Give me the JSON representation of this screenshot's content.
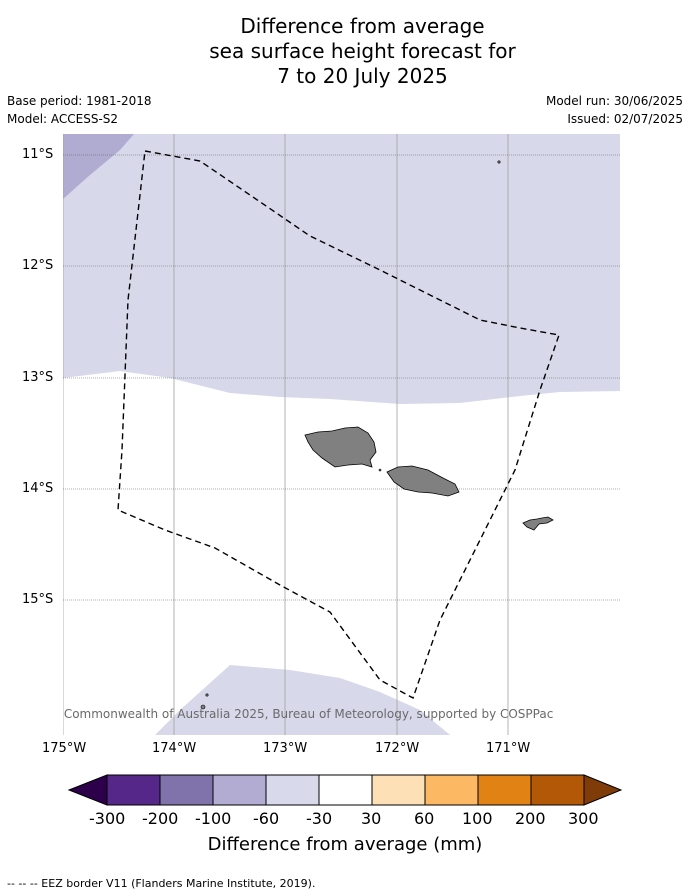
{
  "title": {
    "line1": "Difference from average",
    "line2": "sea surface height forecast for",
    "line3": "7 to 20 July 2025"
  },
  "meta": {
    "base_period": "Base period: 1981-2018",
    "model": "Model: ACCESS-S2",
    "model_run": "Model run: 30/06/2025",
    "issued": "Issued: 02/07/2025"
  },
  "map": {
    "latitude_labels": [
      "11°S",
      "12°S",
      "13°S",
      "14°S",
      "15°S"
    ],
    "longitude_labels": [
      "175°W",
      "174°W",
      "173°W",
      "172°W",
      "171°W"
    ],
    "copyright": "© Commonwealth of Australia 2025, Bureau of Meteorology, supported by COSPPac",
    "colors": {
      "anomaly_minus30_to_minus60": "#d7d8ea",
      "anomaly_minus60_to_minus100": "#b0abd1",
      "land": "#808080",
      "neutral": "#ffffff"
    }
  },
  "colorbar": {
    "title": "Difference from average (mm)",
    "labels": [
      "-300",
      "-200",
      "-100",
      "-60",
      "-30",
      "30",
      "60",
      "100",
      "200",
      "300"
    ],
    "colors": [
      "#2d004b",
      "#542788",
      "#8073ac",
      "#b2abd2",
      "#d8daeb",
      "#ffffff",
      "#fee0b6",
      "#fdb863",
      "#e08214",
      "#b35806",
      "#7f3b08"
    ]
  },
  "footnote": "--  --  -- EEZ border V11 (Flanders Marine Institute, 2019)."
}
